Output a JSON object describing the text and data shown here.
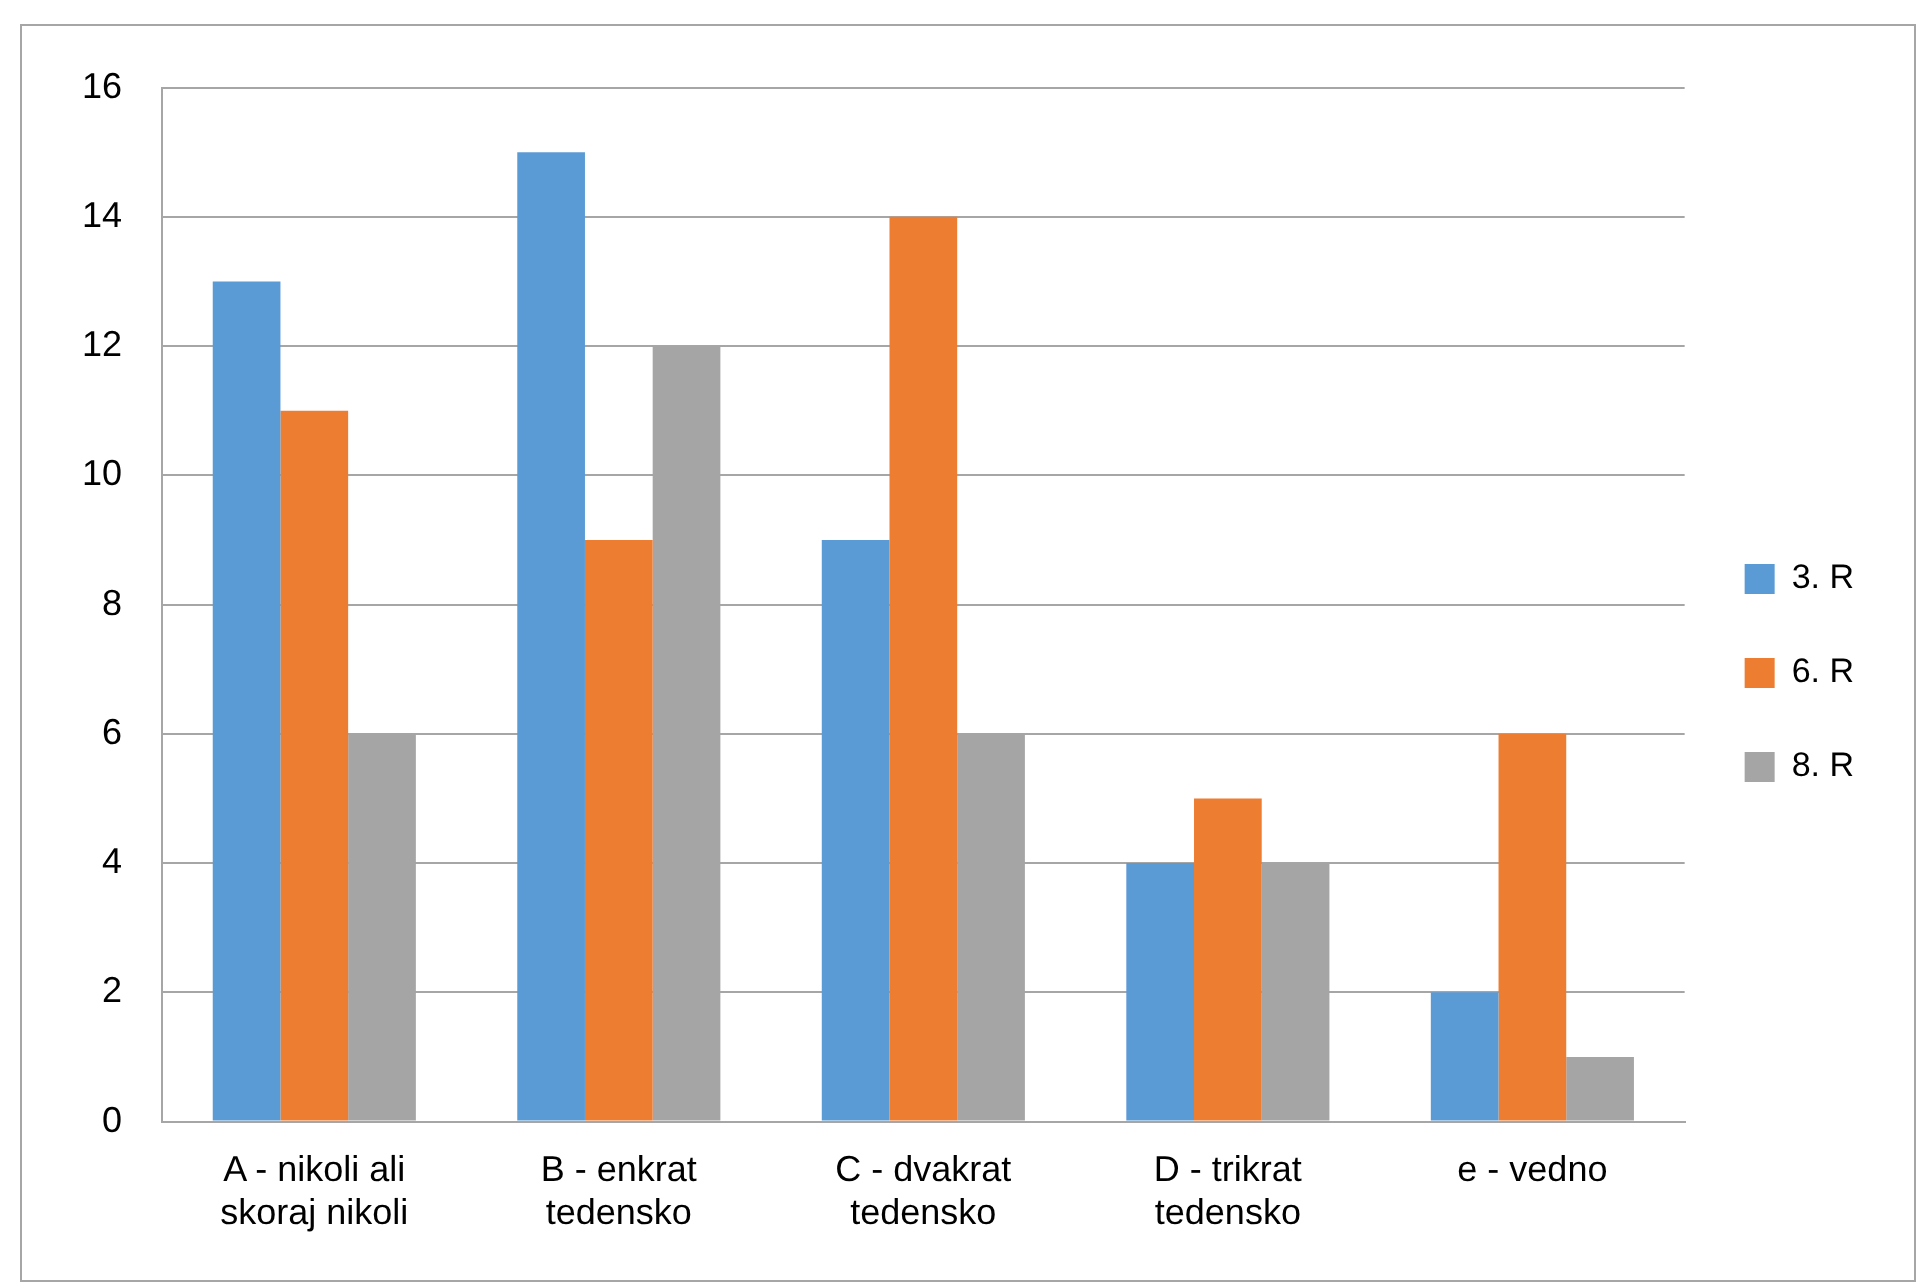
{
  "chart_data": {
    "type": "bar",
    "categories": [
      "A - nikoli ali skoraj nikoli",
      "B - enkrat tedensko",
      "C - dvakrat tedensko",
      "D - trikrat tedensko",
      "e - vedno"
    ],
    "series": [
      {
        "name": "3. R",
        "color": "#5b9bd5",
        "values": [
          13,
          15,
          9,
          4,
          2
        ]
      },
      {
        "name": "6. R",
        "color": "#ed7d31",
        "values": [
          11,
          9,
          14,
          5,
          6
        ]
      },
      {
        "name": "8. R",
        "color": "#a5a5a5",
        "values": [
          6,
          12,
          6,
          4,
          1
        ]
      }
    ],
    "ylim": [
      0,
      16
    ],
    "yticks": [
      0,
      2,
      4,
      6,
      8,
      10,
      12,
      14,
      16
    ],
    "grid": "y",
    "legend": "right"
  }
}
